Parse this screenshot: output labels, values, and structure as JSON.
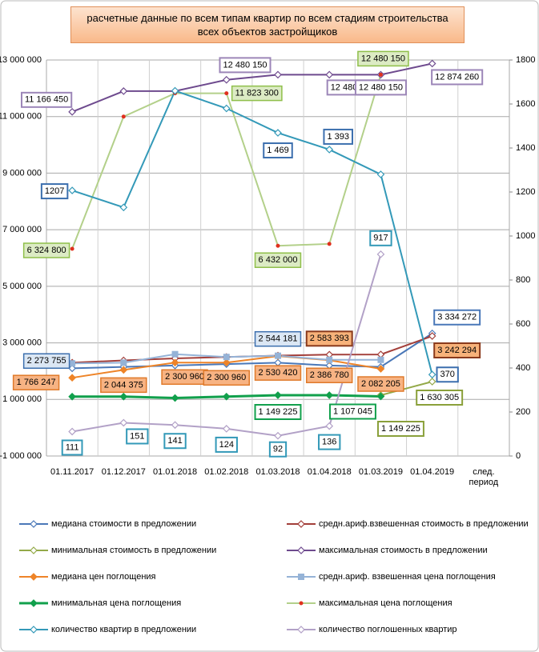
{
  "chart_data": {
    "type": "line",
    "title": "расчетные данные по всем типам квартир по всем стадиям строительства всех объектов застройщиков",
    "categories": [
      "01.11.2017",
      "01.12.2017",
      "01.01.2018",
      "01.02.2018",
      "01.03.2018",
      "01.04.2018",
      "01.03.2019",
      "01.04.2019",
      "след. период"
    ],
    "ylim": [
      -1000000,
      13000000
    ],
    "yticks": [
      {
        "value": -1000000,
        "label": "-1 000 000"
      },
      {
        "value": 1000000,
        "label": "1 000 000"
      },
      {
        "value": 3000000,
        "label": "3 000 000"
      },
      {
        "value": 5000000,
        "label": "5 000 000"
      },
      {
        "value": 7000000,
        "label": "7 000 000"
      },
      {
        "value": 9000000,
        "label": "9 000 000"
      },
      {
        "value": 11000000,
        "label": "11 000 000"
      },
      {
        "value": 13000000,
        "label": "13 000 000"
      }
    ],
    "y2lim": [
      0,
      1800
    ],
    "y2ticks": [
      0,
      200,
      400,
      600,
      800,
      1000,
      1200,
      1400,
      1600,
      1800
    ],
    "grid": true,
    "legend": "bottom",
    "series": [
      {
        "name": "медиана стоимости в предложении",
        "color": "#4a78b8",
        "marker": "diamond-open",
        "values": [
          2100000,
          2150000,
          2200000,
          2250000,
          2300000,
          2200000,
          2150000,
          3334272,
          null
        ],
        "value_labels": [
          null,
          null,
          null,
          null,
          null,
          null,
          null,
          "3 334 272",
          null
        ]
      },
      {
        "name": "средн.ариф.взвешенная стоимость в предложении",
        "color": "#a33f3a",
        "marker": "diamond-open",
        "values": [
          2300000,
          2380000,
          2450000,
          2500000,
          2550000,
          2583393,
          2590000,
          3242294,
          null
        ],
        "value_labels": [
          null,
          null,
          null,
          null,
          null,
          "2 583 393",
          null,
          "3 242 294",
          null
        ]
      },
      {
        "name": "минимальная стоимость в предложении",
        "color": "#93a948",
        "marker": "diamond-open",
        "values": [
          null,
          null,
          null,
          null,
          null,
          null,
          1149225,
          1630305,
          null
        ],
        "value_labels": [
          null,
          null,
          null,
          null,
          null,
          null,
          "1 149 225",
          "1 630 305",
          null
        ]
      },
      {
        "name": "максимальная стоимость в предложении",
        "color": "#6e4a8e",
        "marker": "diamond-open",
        "values": [
          11166450,
          11900000,
          11900000,
          12300000,
          12480150,
          12480150,
          12480150,
          12874260,
          null
        ],
        "value_labels": [
          "11 166 450",
          null,
          null,
          null,
          "12 480 150",
          "12 480 150",
          "12 480 150",
          "12 874 260",
          null
        ]
      },
      {
        "name": "медиана цен поглощения",
        "color": "#ee8428",
        "marker": "diamond",
        "values": [
          1766247,
          2044375,
          2300960,
          2300960,
          2530420,
          2386780,
          2082205,
          null,
          null
        ],
        "value_labels": [
          "1 766 247",
          "2 044 375",
          "2 300 960",
          "2 300 960",
          "2 530 420",
          "2 386 780",
          "2 082 205",
          null,
          null
        ]
      },
      {
        "name": "средн.ариф. взвешенная цена поглощения",
        "color": "#95b3d7",
        "marker": "square",
        "values": [
          2273755,
          2300000,
          2600000,
          2500000,
          2544181,
          2400000,
          2400000,
          null,
          null
        ],
        "value_labels": [
          "2 273 755",
          null,
          null,
          null,
          "2 544 181",
          null,
          null,
          null,
          null
        ]
      },
      {
        "name": "минимальная цена поглощения",
        "color": "#11a04c",
        "marker": "diamond",
        "values": [
          1100000,
          1100000,
          1050000,
          1100000,
          1149225,
          1149225,
          1107045,
          null,
          null
        ],
        "value_labels": [
          null,
          null,
          null,
          null,
          "1 149 225",
          null,
          "1 107 045",
          null,
          null
        ]
      },
      {
        "name": "максимальная цена поглощения",
        "color": "#b3d08a",
        "marker": "dot-red",
        "values": [
          6324800,
          11000000,
          11823300,
          11823300,
          6432000,
          6500000,
          12480150,
          null,
          null
        ],
        "value_labels": [
          "6 324 800",
          null,
          null,
          "11 823 300",
          "6 432 000",
          null,
          "12 480 150",
          null,
          null
        ]
      },
      {
        "name": "количество квартир в предложении",
        "color": "#3399b8",
        "marker": "diamond-open",
        "axis": "y2",
        "values": [
          1207,
          1130,
          1660,
          1580,
          1469,
          1393,
          1280,
          370,
          null
        ],
        "value_labels": [
          "1207",
          null,
          null,
          null,
          "1 469",
          "1 393",
          null,
          "370",
          null
        ]
      },
      {
        "name": "количество поглошенных квартир",
        "color": "#b2a1c7",
        "marker": "diamond-open",
        "axis": "y2",
        "values": [
          111,
          151,
          141,
          124,
          92,
          136,
          917,
          null,
          null
        ],
        "value_labels": [
          "111",
          "151",
          "141",
          "124",
          "92",
          "136",
          "917",
          null,
          null
        ]
      }
    ]
  }
}
